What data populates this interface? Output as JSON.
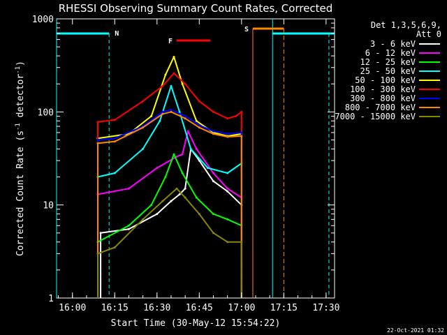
{
  "chart_data": {
    "type": "line",
    "title": "RHESSI Observing Summary Count Rates, Corrected",
    "xlabel": "Start Time (30-May-12 15:54:22)",
    "ylabel": "Corrected Count Rate (s",
    "ylabel_sup1": "-1",
    "ylabel_mid": " detector",
    "ylabel_sup2": "-1",
    "ylabel_end": ")",
    "y_scale": "log",
    "ylim": [
      1,
      1000
    ],
    "xlim": [
      "15:54:22",
      "17:33:00"
    ],
    "x_ticks": [
      "16:00",
      "16:15",
      "16:30",
      "16:45",
      "17:00",
      "17:15",
      "17:30"
    ],
    "y_ticks": [
      "1",
      "10",
      "100",
      "1000"
    ],
    "timestamp": "22-Oct-2021 01:32",
    "legend": {
      "placement": "top-right",
      "header_line1": "Det 1,3,5,6,9,",
      "header_line2": "Att 0"
    },
    "series": [
      {
        "name": "3 - 6 keV",
        "color": "#ffffff",
        "points": [
          [
            "16:10",
            5
          ],
          [
            "16:20",
            5.5
          ],
          [
            "16:30",
            8
          ],
          [
            "16:35",
            11
          ],
          [
            "16:38",
            13
          ],
          [
            "16:40",
            15
          ],
          [
            "16:42",
            40
          ],
          [
            "16:45",
            30
          ],
          [
            "16:50",
            18
          ],
          [
            "16:55",
            14
          ],
          [
            "17:00",
            10
          ]
        ]
      },
      {
        "name": "6 - 12 keV",
        "color": "#ff00ff",
        "points": [
          [
            "16:09",
            13
          ],
          [
            "16:20",
            15
          ],
          [
            "16:30",
            25
          ],
          [
            "16:37",
            33
          ],
          [
            "16:39",
            35
          ],
          [
            "16:41",
            62
          ],
          [
            "16:44",
            40
          ],
          [
            "16:50",
            22
          ],
          [
            "16:55",
            15
          ],
          [
            "17:00",
            12
          ]
        ]
      },
      {
        "name": "12 - 25 keV",
        "color": "#00ff00",
        "points": [
          [
            "16:09",
            4
          ],
          [
            "16:20",
            6
          ],
          [
            "16:28",
            10
          ],
          [
            "16:33",
            20
          ],
          [
            "16:36",
            35
          ],
          [
            "16:39",
            22
          ],
          [
            "16:44",
            12
          ],
          [
            "16:50",
            8
          ],
          [
            "16:55",
            7
          ],
          [
            "17:00",
            6
          ]
        ]
      },
      {
        "name": "25 - 50 keV",
        "color": "#00ffff",
        "points": [
          [
            "16:09",
            20
          ],
          [
            "16:15",
            22
          ],
          [
            "16:25",
            40
          ],
          [
            "16:31",
            80
          ],
          [
            "16:35",
            190
          ],
          [
            "16:38",
            100
          ],
          [
            "16:42",
            40
          ],
          [
            "16:48",
            25
          ],
          [
            "16:55",
            22
          ],
          [
            "17:00",
            28
          ]
        ]
      },
      {
        "name": "50 - 100 keV",
        "color": "#ffff00",
        "points": [
          [
            "16:09",
            52
          ],
          [
            "16:20",
            58
          ],
          [
            "16:28",
            90
          ],
          [
            "16:33",
            250
          ],
          [
            "16:36",
            390
          ],
          [
            "16:39",
            200
          ],
          [
            "16:44",
            80
          ],
          [
            "16:50",
            60
          ],
          [
            "16:55",
            55
          ],
          [
            "17:00",
            58
          ]
        ]
      },
      {
        "name": "100 - 300 keV",
        "color": "#ff0000",
        "points": [
          [
            "16:09",
            78
          ],
          [
            "16:15",
            82
          ],
          [
            "16:25",
            130
          ],
          [
            "16:32",
            190
          ],
          [
            "16:36",
            260
          ],
          [
            "16:40",
            200
          ],
          [
            "16:45",
            130
          ],
          [
            "16:50",
            100
          ],
          [
            "16:55",
            85
          ],
          [
            "16:58",
            90
          ],
          [
            "17:00",
            100
          ]
        ]
      },
      {
        "name": "300 - 800 keV",
        "color": "#0000ff",
        "points": [
          [
            "16:09",
            50
          ],
          [
            "16:15",
            52
          ],
          [
            "16:25",
            70
          ],
          [
            "16:32",
            100
          ],
          [
            "16:35",
            105
          ],
          [
            "16:40",
            90
          ],
          [
            "16:45",
            72
          ],
          [
            "16:50",
            62
          ],
          [
            "16:55",
            58
          ],
          [
            "17:00",
            60
          ]
        ]
      },
      {
        "name": "800 - 7000 keV",
        "color": "#ff8800",
        "points": [
          [
            "16:09",
            46
          ],
          [
            "16:15",
            48
          ],
          [
            "16:25",
            68
          ],
          [
            "16:32",
            95
          ],
          [
            "16:35",
            100
          ],
          [
            "16:40",
            85
          ],
          [
            "16:45",
            68
          ],
          [
            "16:50",
            58
          ],
          [
            "16:55",
            54
          ],
          [
            "17:00",
            55
          ]
        ]
      },
      {
        "name": "7000 - 15000 keV",
        "color": "#888800",
        "points": [
          [
            "16:09",
            3
          ],
          [
            "16:15",
            3.5
          ],
          [
            "16:25",
            7
          ],
          [
            "16:32",
            11
          ],
          [
            "16:37",
            15
          ],
          [
            "16:40",
            12
          ],
          [
            "16:45",
            8
          ],
          [
            "16:50",
            5
          ],
          [
            "16:55",
            4
          ],
          [
            "17:00",
            4
          ]
        ]
      }
    ],
    "night_intervals": [
      {
        "start": "15:54:22",
        "end": "16:13",
        "label": "N",
        "marker": "16:13"
      },
      {
        "start": "17:11",
        "end": "17:33:00",
        "label": "",
        "marker": "17:31"
      }
    ],
    "saa_interval": {
      "start": "17:04",
      "end": "17:15",
      "label": "S",
      "marker": "17:15"
    },
    "flare_interval": {
      "start": "16:37",
      "end": "16:49",
      "label": "F"
    }
  }
}
